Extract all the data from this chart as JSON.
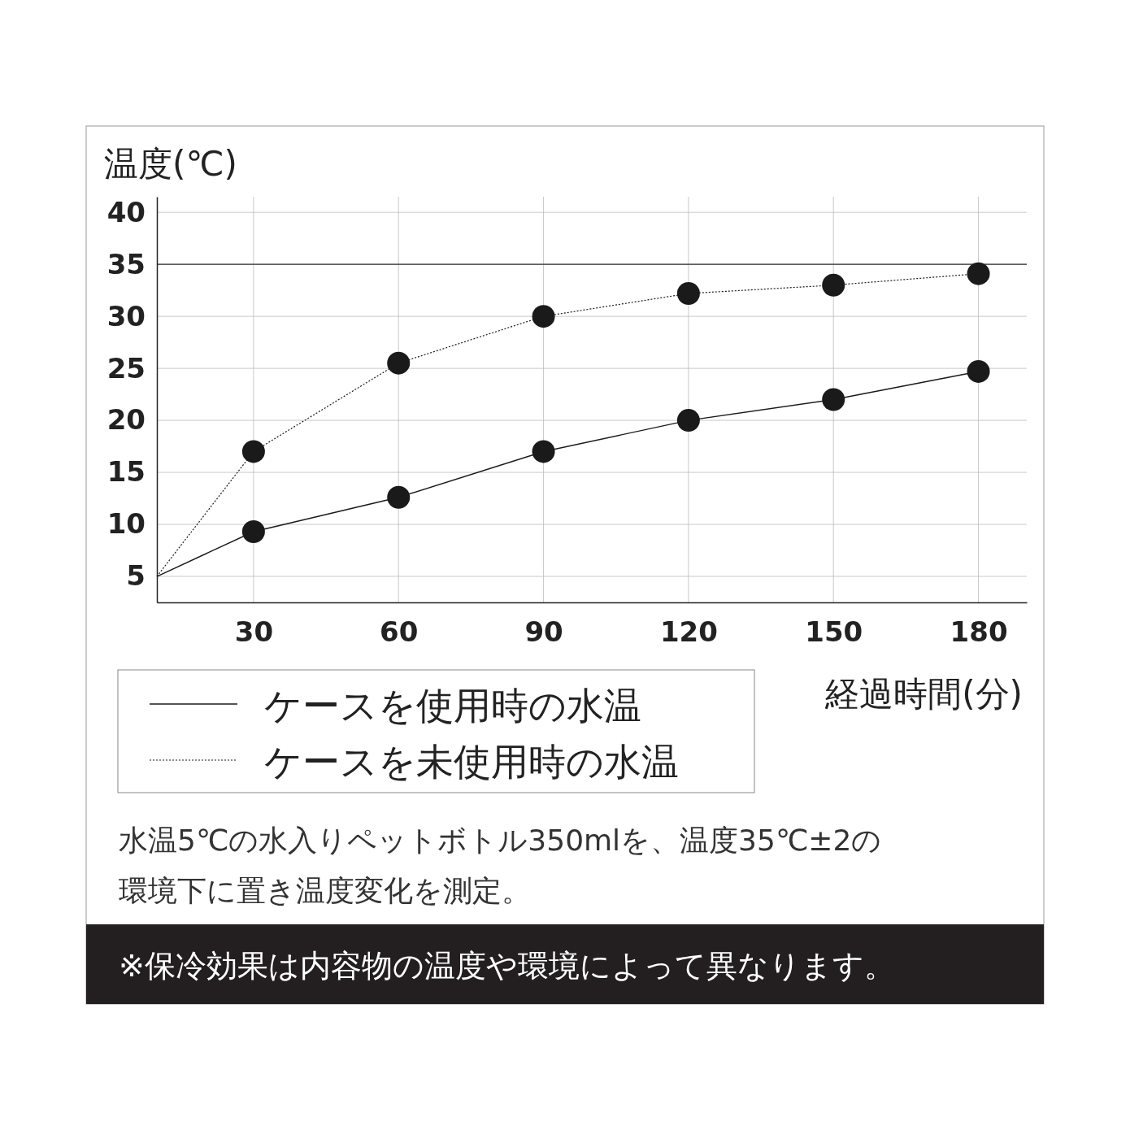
{
  "chart_data": {
    "type": "line",
    "ylabel": "温度(℃)",
    "xlabel": "経過時間(分)",
    "xlim": [
      10,
      190
    ],
    "ylim": [
      2.5,
      41.5
    ],
    "xticks": [
      30,
      60,
      90,
      120,
      150,
      180
    ],
    "yticks": [
      5,
      10,
      15,
      20,
      25,
      30,
      35,
      40
    ],
    "grid": true,
    "legend": "bottom",
    "marker": "circle",
    "ref_lines": [
      {
        "axis": "y",
        "value": 35,
        "color": "#333333"
      }
    ],
    "series": [
      {
        "name": "ケースを使用時の水温",
        "color": "#1a1a1a",
        "line_style": "solid",
        "x": [
          10,
          30,
          60,
          90,
          120,
          150,
          180
        ],
        "values": [
          5,
          9.3,
          12.6,
          17,
          20,
          22,
          24.7
        ]
      },
      {
        "name": "ケースを未使用時の水温",
        "color": "#1a1a1a",
        "line_style": "dotted",
        "x": [
          10,
          30,
          60,
          90,
          120,
          150,
          180
        ],
        "values": [
          5,
          17,
          25.5,
          30,
          32.2,
          33,
          34.1
        ]
      }
    ],
    "annotations": [
      "水温5℃の水入りペットボトル350mlを、温度35℃±2の環境下に置き温度変化を測定。",
      "※保冷効果は内容物の温度や環境によって異なります。"
    ]
  }
}
